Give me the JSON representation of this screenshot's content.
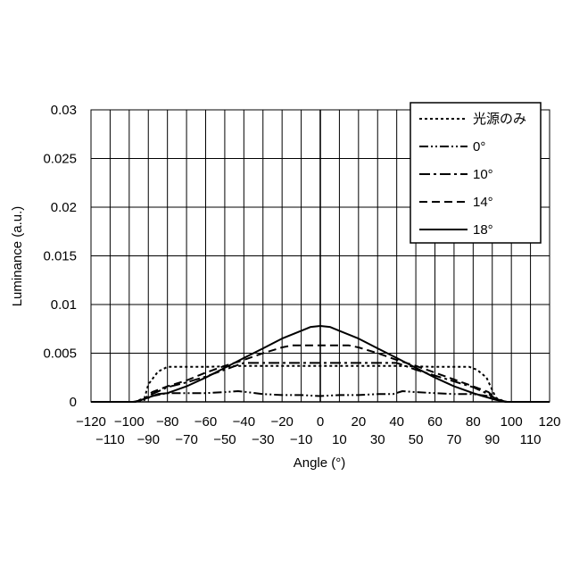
{
  "chart_data": {
    "type": "line",
    "title": "",
    "xlabel": "Angle (°)",
    "ylabel": "Luminance (a.u.)",
    "xlim": [
      -120,
      120
    ],
    "ylim": [
      0,
      0.03
    ],
    "x_ticks_upper": [
      "−120",
      "−100",
      "−80",
      "−60",
      "−40",
      "−20",
      "0",
      "20",
      "40",
      "60",
      "80",
      "100",
      "120"
    ],
    "x_ticks_lower": [
      "−110",
      "−90",
      "−70",
      "−50",
      "−30",
      "−10",
      "10",
      "30",
      "50",
      "70",
      "90",
      "110"
    ],
    "y_ticks": [
      "0",
      "0.005",
      "0.01",
      "0.015",
      "0.02",
      "0.025",
      "0.03"
    ],
    "grid": true,
    "legend_position": "top-right",
    "series": [
      {
        "name": "光源のみ",
        "style": "dotted",
        "x": [
          -120,
          -97,
          -92,
          -90,
          -85,
          -80,
          -60,
          -40,
          -20,
          0,
          20,
          40,
          60,
          78,
          82,
          87,
          90,
          92,
          97,
          120
        ],
        "y": [
          0,
          0,
          0.0004,
          0.0018,
          0.0031,
          0.0036,
          0.0036,
          0.0037,
          0.0037,
          0.0037,
          0.0037,
          0.0037,
          0.0036,
          0.0036,
          0.0033,
          0.0025,
          0.0012,
          0.0004,
          0,
          0
        ]
      },
      {
        "name": "0°",
        "style": "dash-dot-dot",
        "x": [
          -120,
          -98,
          -92,
          -88,
          -80,
          -70,
          -60,
          -50,
          -43,
          -38,
          -30,
          -20,
          -10,
          0,
          10,
          20,
          30,
          38,
          43,
          50,
          60,
          70,
          80,
          88,
          92,
          98,
          120
        ],
        "y": [
          0,
          0,
          0.0002,
          0.0006,
          0.0009,
          0.0009,
          0.0009,
          0.001,
          0.0011,
          0.001,
          0.0008,
          0.0007,
          0.0007,
          0.0006,
          0.0007,
          0.0007,
          0.0008,
          0.0008,
          0.0011,
          0.001,
          0.0009,
          0.0008,
          0.0008,
          0.0006,
          0.0002,
          0,
          0
        ]
      },
      {
        "name": "10°",
        "style": "dash-dot",
        "x": [
          -120,
          -97,
          -92,
          -88,
          -80,
          -70,
          -60,
          -50,
          -43,
          -40,
          -20,
          0,
          20,
          40,
          43,
          50,
          60,
          70,
          80,
          88,
          92,
          97,
          120
        ],
        "y": [
          0,
          0,
          0.0003,
          0.0008,
          0.0015,
          0.002,
          0.0026,
          0.0033,
          0.0038,
          0.004,
          0.004,
          0.004,
          0.004,
          0.004,
          0.0038,
          0.0033,
          0.0027,
          0.0021,
          0.0015,
          0.0008,
          0.0003,
          0,
          0
        ]
      },
      {
        "name": "14°",
        "style": "dashed",
        "x": [
          -120,
          -97,
          -92,
          -88,
          -80,
          -70,
          -60,
          -50,
          -40,
          -30,
          -20,
          -15,
          0,
          15,
          20,
          30,
          40,
          50,
          60,
          70,
          80,
          88,
          92,
          97,
          120
        ],
        "y": [
          0,
          0,
          0.0003,
          0.001,
          0.0016,
          0.0022,
          0.003,
          0.0037,
          0.0043,
          0.005,
          0.0056,
          0.0058,
          0.0058,
          0.0058,
          0.0056,
          0.005,
          0.0043,
          0.0037,
          0.003,
          0.0023,
          0.0016,
          0.001,
          0.0003,
          0,
          0
        ]
      },
      {
        "name": "18°",
        "style": "solid",
        "x": [
          -120,
          -97,
          -92,
          -85,
          -80,
          -70,
          -60,
          -50,
          -40,
          -30,
          -20,
          -10,
          -5,
          0,
          5,
          10,
          20,
          30,
          40,
          50,
          60,
          70,
          80,
          85,
          92,
          97,
          120
        ],
        "y": [
          0,
          0,
          0.0003,
          0.0008,
          0.0009,
          0.0016,
          0.0025,
          0.0035,
          0.0045,
          0.0055,
          0.0065,
          0.0073,
          0.0077,
          0.0078,
          0.0077,
          0.0073,
          0.0065,
          0.0055,
          0.0045,
          0.0035,
          0.0025,
          0.0016,
          0.0009,
          0.0006,
          0.0002,
          0,
          0
        ]
      }
    ]
  }
}
